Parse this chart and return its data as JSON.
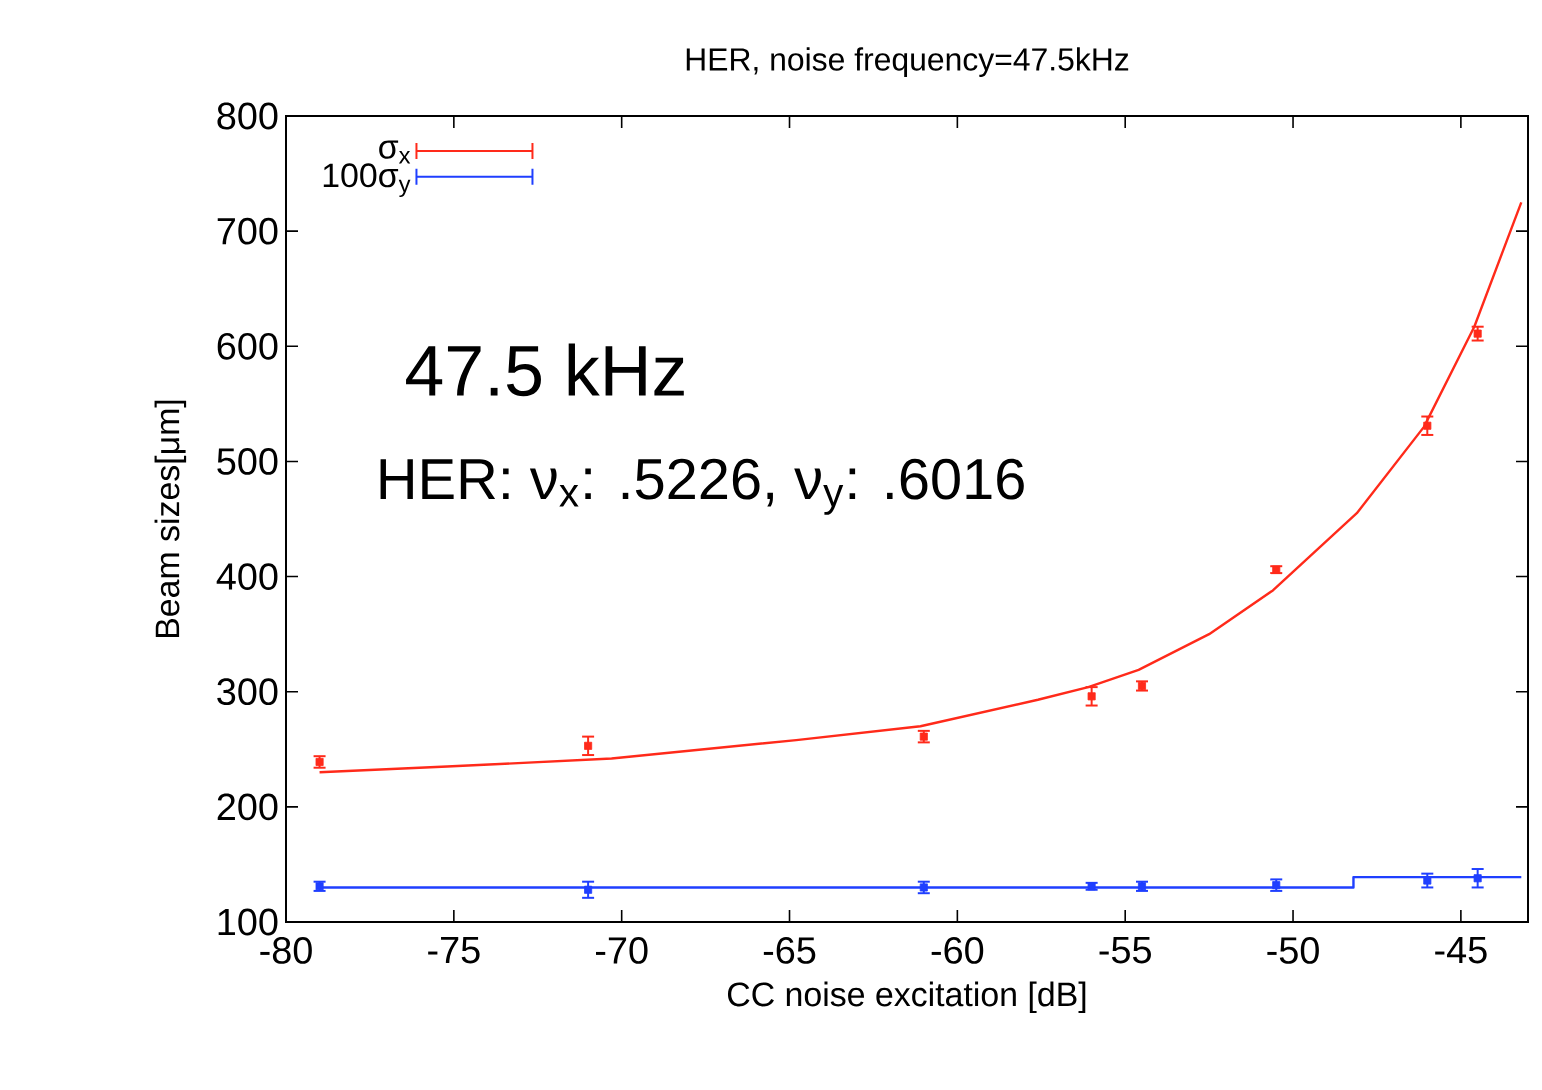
{
  "chart_data": {
    "type": "scatter",
    "title": "HER, noise frequency=47.5kHz",
    "xlabel": "CC noise excitation [dB]",
    "ylabel": "Beam sizes[μm]",
    "xlim": [
      -80,
      -43
    ],
    "ylim": [
      100,
      800
    ],
    "xticks": [
      -80,
      -75,
      -70,
      -65,
      -60,
      -55,
      -50,
      -45
    ],
    "yticks": [
      100,
      200,
      300,
      400,
      500,
      600,
      700,
      800
    ],
    "grid": false,
    "legend": "top left",
    "annotations": [
      "47.5 kHz",
      "HER: ν$_{x}$: .5226, ν$_{y}$: .6016"
    ],
    "series": [
      {
        "name": "σ$_{x}$",
        "marker": "square",
        "color": "#ff2a1a",
        "x": [
          -79,
          -71,
          -61,
          -56,
          -54.5,
          -50.5,
          -46,
          -44.5
        ],
        "values": [
          239,
          253,
          261,
          296,
          305,
          406,
          531,
          611
        ],
        "errors": [
          5,
          8,
          5,
          8,
          4,
          3,
          8,
          6
        ]
      },
      {
        "name": "100σ$_{y}$",
        "marker": "square",
        "color": "#1f3fff",
        "x": [
          -79,
          -71,
          -61,
          -56,
          -54.5,
          -50.5,
          -46,
          -44.5
        ],
        "values": [
          131,
          128,
          130,
          131,
          131,
          132,
          136,
          138
        ],
        "errors": [
          4,
          7,
          5,
          3,
          4,
          5,
          6,
          8
        ]
      },
      {
        "type": "line",
        "color": "#ff2a1a",
        "x": [
          -79,
          -75.2,
          -70.3,
          -64.8,
          -61.1,
          -57.6,
          -56.1,
          -54.6,
          -52.5,
          -50.6,
          -48.1,
          -46.1,
          -44.6,
          -43.2
        ],
        "values": [
          230,
          235,
          242,
          258,
          270,
          293,
          304,
          319,
          350,
          388,
          455,
          530,
          617,
          725
        ]
      },
      {
        "type": "line",
        "color": "#1f3fff",
        "x": [
          -79,
          -48.2,
          -48.2,
          -43.2
        ],
        "values": [
          130,
          130,
          139,
          139
        ]
      }
    ]
  }
}
